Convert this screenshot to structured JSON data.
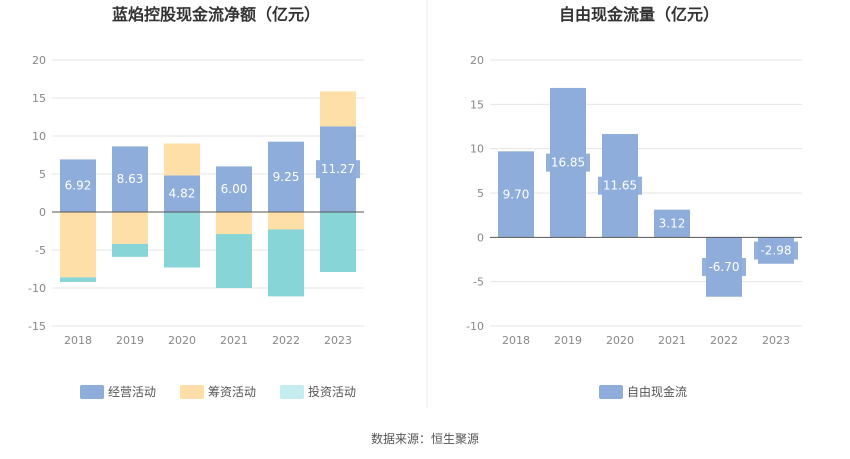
{
  "footer": {
    "source": "数据来源：恒生聚源"
  },
  "colors": {
    "operating": "#8eadda",
    "financing": "#ffdfa8",
    "investing": "#88d5d8",
    "fcf": "#8eadda",
    "grid": "#e6e6e6",
    "axis": "#555555"
  },
  "chart_data": [
    {
      "type": "bar",
      "title": "蓝焰控股现金流净额（亿元）",
      "stacked": true,
      "categories": [
        "2018",
        "2019",
        "2020",
        "2021",
        "2022",
        "2023"
      ],
      "series": [
        {
          "name": "经营活动",
          "values": [
            6.92,
            8.63,
            4.82,
            6.0,
            9.25,
            11.27
          ],
          "labels": [
            "6.92",
            "8.63",
            "4.82",
            "6.00",
            "9.25",
            "11.27"
          ]
        },
        {
          "name": "筹资活动",
          "values": [
            -8.6,
            -4.2,
            4.2,
            -2.9,
            -2.3,
            4.6
          ]
        },
        {
          "name": "投资活动",
          "values": [
            -0.6,
            -1.7,
            -7.3,
            -7.1,
            -8.8,
            -7.9
          ]
        }
      ],
      "ylim": [
        -15,
        20
      ],
      "yticks": [
        "20",
        "15",
        "10",
        "5",
        "0",
        "-5",
        "-10",
        "-15"
      ],
      "grid": true,
      "legend": "bottom"
    },
    {
      "type": "bar",
      "title": "自由现金流量（亿元）",
      "categories": [
        "2018",
        "2019",
        "2020",
        "2021",
        "2022",
        "2023"
      ],
      "series": [
        {
          "name": "自由现金流",
          "values": [
            9.7,
            16.85,
            11.65,
            3.12,
            -6.7,
            -2.98
          ],
          "labels": [
            "9.70",
            "16.85",
            "11.65",
            "3.12",
            "-6.70",
            "-2.98"
          ]
        }
      ],
      "ylim": [
        -10,
        20
      ],
      "yticks": [
        "20",
        "15",
        "10",
        "5",
        "0",
        "-5",
        "-10"
      ],
      "grid": true,
      "legend": "bottom"
    }
  ]
}
